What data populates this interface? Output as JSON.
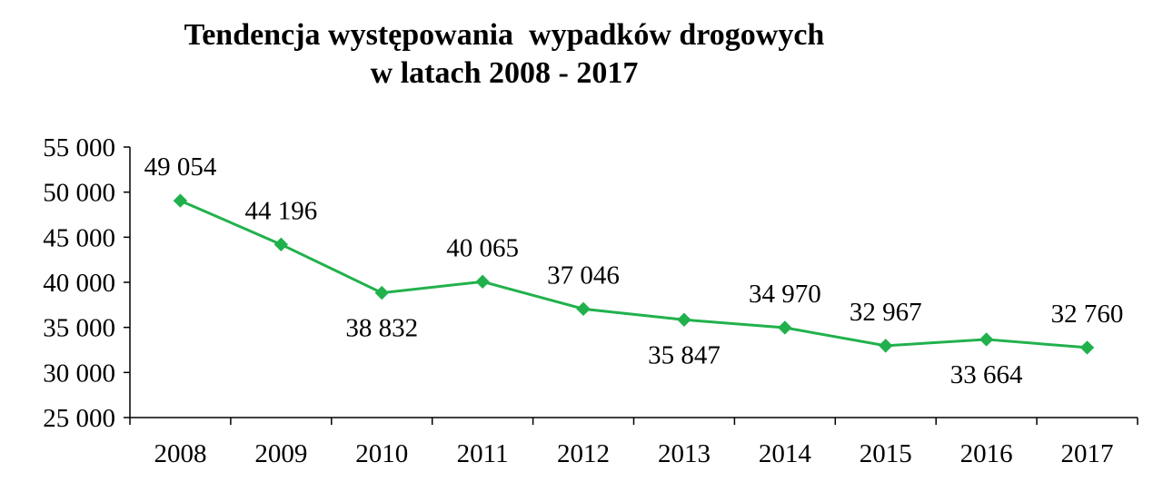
{
  "chart_data": {
    "type": "line",
    "title_line1": "Tendencja występowania  wypadków drogowych",
    "title_line2": "w latach 2008 - 2017",
    "xlabel": "",
    "ylabel": "",
    "categories": [
      "2008",
      "2009",
      "2010",
      "2011",
      "2012",
      "2013",
      "2014",
      "2015",
      "2016",
      "2017"
    ],
    "values": [
      49054,
      44196,
      38832,
      40065,
      37046,
      35847,
      34970,
      32967,
      33664,
      32760
    ],
    "value_labels": [
      "49 054",
      "44 196",
      "38 832",
      "40 065",
      "37 046",
      "35 847",
      "34 970",
      "32 967",
      "33 664",
      "32 760"
    ],
    "label_positions": [
      "above",
      "above",
      "below",
      "above",
      "above",
      "below",
      "above",
      "above",
      "below",
      "above"
    ],
    "ylim": [
      25000,
      55000
    ],
    "yticks": [
      25000,
      30000,
      35000,
      40000,
      45000,
      50000,
      55000
    ],
    "ytick_labels": [
      "25 000",
      "30 000",
      "35 000",
      "40 000",
      "45 000",
      "50 000",
      "55 000"
    ],
    "grid": false,
    "legend": "none",
    "line_color": "#21B14C",
    "marker": "diamond"
  }
}
